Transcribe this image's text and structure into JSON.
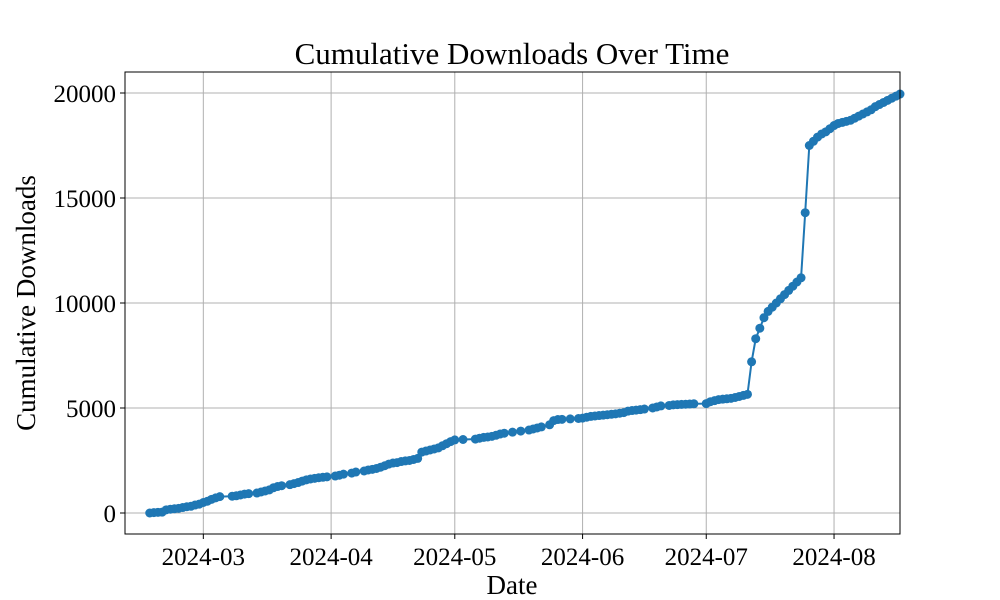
{
  "chart_data": {
    "type": "line",
    "title": "Cumulative Downloads Over Time",
    "xlabel": "Date",
    "ylabel": "Cumulative Downloads",
    "grid": true,
    "legend": "none",
    "color": "#1f77b4",
    "marker": "circle",
    "xlim": [
      "2024-02-11",
      "2024-08-17"
    ],
    "ylim": [
      -1000,
      21000
    ],
    "x_ticks": [
      "2024-03",
      "2024-04",
      "2024-05",
      "2024-06",
      "2024-07",
      "2024-08"
    ],
    "y_ticks": [
      0,
      5000,
      10000,
      15000,
      20000
    ],
    "y_tick_labels": [
      "0",
      "5000",
      "10000",
      "15000",
      "20000"
    ],
    "series": [
      {
        "points": [
          [
            "2024-02-17",
            0
          ],
          [
            "2024-02-18",
            20
          ],
          [
            "2024-02-19",
            30
          ],
          [
            "2024-02-20",
            40
          ],
          [
            "2024-02-21",
            150
          ],
          [
            "2024-02-22",
            180
          ],
          [
            "2024-02-23",
            200
          ],
          [
            "2024-02-24",
            220
          ],
          [
            "2024-02-25",
            260
          ],
          [
            "2024-02-26",
            300
          ],
          [
            "2024-02-27",
            320
          ],
          [
            "2024-02-28",
            380
          ],
          [
            "2024-02-29",
            420
          ],
          [
            "2024-03-01",
            500
          ],
          [
            "2024-03-02",
            560
          ],
          [
            "2024-03-03",
            650
          ],
          [
            "2024-03-04",
            720
          ],
          [
            "2024-03-05",
            780
          ],
          [
            "2024-03-08",
            800
          ],
          [
            "2024-03-09",
            820
          ],
          [
            "2024-03-10",
            860
          ],
          [
            "2024-03-11",
            900
          ],
          [
            "2024-03-12",
            920
          ],
          [
            "2024-03-14",
            950
          ],
          [
            "2024-03-15",
            1000
          ],
          [
            "2024-03-16",
            1050
          ],
          [
            "2024-03-17",
            1100
          ],
          [
            "2024-03-18",
            1200
          ],
          [
            "2024-03-19",
            1260
          ],
          [
            "2024-03-20",
            1300
          ],
          [
            "2024-03-22",
            1350
          ],
          [
            "2024-03-23",
            1400
          ],
          [
            "2024-03-24",
            1450
          ],
          [
            "2024-03-25",
            1520
          ],
          [
            "2024-03-26",
            1580
          ],
          [
            "2024-03-27",
            1620
          ],
          [
            "2024-03-28",
            1650
          ],
          [
            "2024-03-29",
            1680
          ],
          [
            "2024-03-30",
            1700
          ],
          [
            "2024-03-31",
            1720
          ],
          [
            "2024-04-02",
            1760
          ],
          [
            "2024-04-03",
            1800
          ],
          [
            "2024-04-04",
            1850
          ],
          [
            "2024-04-06",
            1900
          ],
          [
            "2024-04-07",
            1950
          ],
          [
            "2024-04-09",
            2000
          ],
          [
            "2024-04-10",
            2050
          ],
          [
            "2024-04-11",
            2080
          ],
          [
            "2024-04-12",
            2120
          ],
          [
            "2024-04-13",
            2180
          ],
          [
            "2024-04-14",
            2250
          ],
          [
            "2024-04-15",
            2330
          ],
          [
            "2024-04-16",
            2380
          ],
          [
            "2024-04-17",
            2400
          ],
          [
            "2024-04-18",
            2450
          ],
          [
            "2024-04-19",
            2480
          ],
          [
            "2024-04-20",
            2500
          ],
          [
            "2024-04-21",
            2550
          ],
          [
            "2024-04-22",
            2600
          ],
          [
            "2024-04-23",
            2900
          ],
          [
            "2024-04-24",
            2950
          ],
          [
            "2024-04-25",
            3000
          ],
          [
            "2024-04-26",
            3050
          ],
          [
            "2024-04-27",
            3100
          ],
          [
            "2024-04-28",
            3200
          ],
          [
            "2024-04-29",
            3300
          ],
          [
            "2024-04-30",
            3400
          ],
          [
            "2024-05-01",
            3480
          ],
          [
            "2024-05-03",
            3500
          ],
          [
            "2024-05-06",
            3520
          ],
          [
            "2024-05-07",
            3560
          ],
          [
            "2024-05-08",
            3600
          ],
          [
            "2024-05-09",
            3620
          ],
          [
            "2024-05-10",
            3650
          ],
          [
            "2024-05-11",
            3700
          ],
          [
            "2024-05-12",
            3760
          ],
          [
            "2024-05-13",
            3800
          ],
          [
            "2024-05-15",
            3850
          ],
          [
            "2024-05-17",
            3900
          ],
          [
            "2024-05-19",
            3950
          ],
          [
            "2024-05-20",
            4000
          ],
          [
            "2024-05-21",
            4050
          ],
          [
            "2024-05-22",
            4100
          ],
          [
            "2024-05-24",
            4200
          ],
          [
            "2024-05-25",
            4400
          ],
          [
            "2024-05-26",
            4450
          ],
          [
            "2024-05-27",
            4460
          ],
          [
            "2024-05-29",
            4480
          ],
          [
            "2024-05-31",
            4500
          ],
          [
            "2024-06-01",
            4520
          ],
          [
            "2024-06-02",
            4560
          ],
          [
            "2024-06-03",
            4600
          ],
          [
            "2024-06-04",
            4620
          ],
          [
            "2024-06-05",
            4640
          ],
          [
            "2024-06-06",
            4660
          ],
          [
            "2024-06-07",
            4680
          ],
          [
            "2024-06-08",
            4700
          ],
          [
            "2024-06-09",
            4720
          ],
          [
            "2024-06-10",
            4750
          ],
          [
            "2024-06-11",
            4780
          ],
          [
            "2024-06-12",
            4850
          ],
          [
            "2024-06-13",
            4880
          ],
          [
            "2024-06-14",
            4900
          ],
          [
            "2024-06-15",
            4920
          ],
          [
            "2024-06-16",
            4950
          ],
          [
            "2024-06-18",
            5000
          ],
          [
            "2024-06-19",
            5050
          ],
          [
            "2024-06-20",
            5100
          ],
          [
            "2024-06-22",
            5120
          ],
          [
            "2024-06-23",
            5150
          ],
          [
            "2024-06-24",
            5160
          ],
          [
            "2024-06-25",
            5170
          ],
          [
            "2024-06-26",
            5180
          ],
          [
            "2024-06-27",
            5190
          ],
          [
            "2024-06-28",
            5200
          ],
          [
            "2024-07-01",
            5210
          ],
          [
            "2024-07-02",
            5300
          ],
          [
            "2024-07-03",
            5350
          ],
          [
            "2024-07-04",
            5400
          ],
          [
            "2024-07-05",
            5420
          ],
          [
            "2024-07-06",
            5440
          ],
          [
            "2024-07-07",
            5460
          ],
          [
            "2024-07-08",
            5500
          ],
          [
            "2024-07-09",
            5550
          ],
          [
            "2024-07-10",
            5600
          ],
          [
            "2024-07-11",
            5650
          ],
          [
            "2024-07-12",
            7200
          ],
          [
            "2024-07-13",
            8300
          ],
          [
            "2024-07-14",
            8800
          ],
          [
            "2024-07-15",
            9300
          ],
          [
            "2024-07-16",
            9600
          ],
          [
            "2024-07-17",
            9800
          ],
          [
            "2024-07-18",
            10000
          ],
          [
            "2024-07-19",
            10200
          ],
          [
            "2024-07-20",
            10400
          ],
          [
            "2024-07-21",
            10600
          ],
          [
            "2024-07-22",
            10800
          ],
          [
            "2024-07-23",
            11000
          ],
          [
            "2024-07-24",
            11200
          ],
          [
            "2024-07-25",
            14300
          ],
          [
            "2024-07-26",
            17500
          ],
          [
            "2024-07-27",
            17700
          ],
          [
            "2024-07-28",
            17900
          ],
          [
            "2024-07-29",
            18050
          ],
          [
            "2024-07-30",
            18150
          ],
          [
            "2024-07-31",
            18300
          ],
          [
            "2024-08-01",
            18450
          ],
          [
            "2024-08-02",
            18550
          ],
          [
            "2024-08-03",
            18600
          ],
          [
            "2024-08-04",
            18650
          ],
          [
            "2024-08-05",
            18700
          ],
          [
            "2024-08-06",
            18800
          ],
          [
            "2024-08-07",
            18900
          ],
          [
            "2024-08-08",
            19000
          ],
          [
            "2024-08-09",
            19100
          ],
          [
            "2024-08-10",
            19200
          ],
          [
            "2024-08-11",
            19350
          ],
          [
            "2024-08-12",
            19450
          ],
          [
            "2024-08-13",
            19550
          ],
          [
            "2024-08-14",
            19650
          ],
          [
            "2024-08-15",
            19750
          ],
          [
            "2024-08-16",
            19850
          ],
          [
            "2024-08-17",
            19950
          ]
        ]
      }
    ]
  }
}
